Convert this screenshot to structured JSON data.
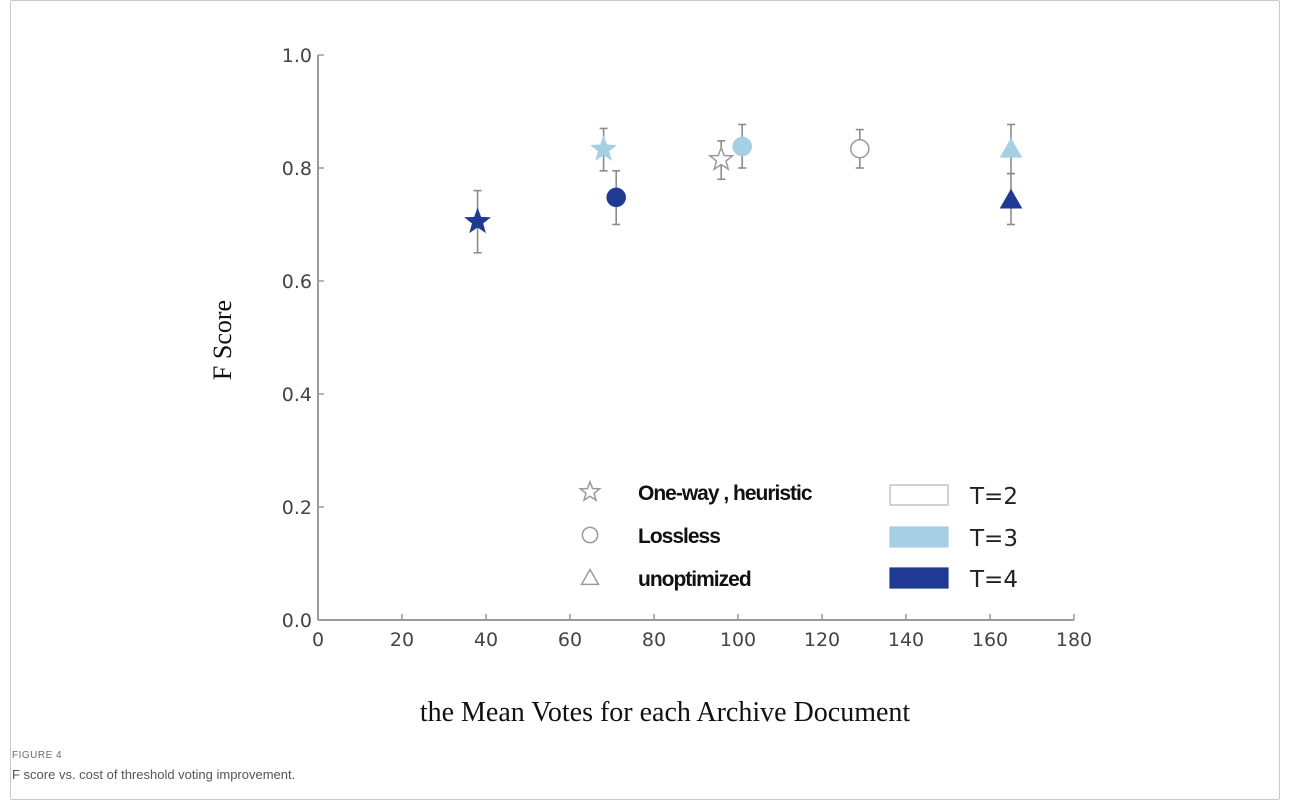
{
  "figure": {
    "label": "FIGURE 4",
    "caption": "F score vs. cost of threshold voting improvement."
  },
  "chart_data": {
    "type": "scatter",
    "title": "",
    "xlabel": "the Mean Votes for each Archive Document",
    "ylabel": "F Score",
    "xlim": [
      0,
      180
    ],
    "ylim": [
      0.0,
      1.0
    ],
    "xticks": [
      0,
      20,
      40,
      60,
      80,
      100,
      120,
      140,
      160,
      180
    ],
    "yticks": [
      0.0,
      0.2,
      0.4,
      0.6,
      0.8,
      1.0
    ],
    "x_tick_labels": [
      "0",
      "20",
      "40",
      "60",
      "80",
      "100",
      "120",
      "140",
      "160",
      "180"
    ],
    "y_tick_labels": [
      "0.0",
      "0.2",
      "0.4",
      "0.6",
      "0.8",
      "1.0"
    ],
    "grid": false,
    "legend_position": "bottom-right",
    "marker_legend": [
      {
        "marker": "star",
        "label": "One-way , heuristic"
      },
      {
        "marker": "circle",
        "label": "Lossless"
      },
      {
        "marker": "triangle",
        "label": "unoptimized"
      }
    ],
    "color_legend": [
      {
        "label": "T=2",
        "color": "#ffffff"
      },
      {
        "label": "T=3",
        "color": "#a6cfe4"
      },
      {
        "label": "T=4",
        "color": "#1f3a93"
      }
    ],
    "points": [
      {
        "method": "One-way , heuristic",
        "marker": "star",
        "T": "T=4",
        "x": 38,
        "y": 0.705,
        "err_low": 0.65,
        "err_high": 0.76
      },
      {
        "method": "One-way , heuristic",
        "marker": "star",
        "T": "T=3",
        "x": 68,
        "y": 0.833,
        "err_low": 0.795,
        "err_high": 0.87
      },
      {
        "method": "One-way , heuristic",
        "marker": "star",
        "T": "T=2",
        "x": 96,
        "y": 0.815,
        "err_low": 0.78,
        "err_high": 0.848
      },
      {
        "method": "Lossless",
        "marker": "circle",
        "T": "T=4",
        "x": 71,
        "y": 0.748,
        "err_low": 0.7,
        "err_high": 0.795
      },
      {
        "method": "Lossless",
        "marker": "circle",
        "T": "T=3",
        "x": 101,
        "y": 0.838,
        "err_low": 0.8,
        "err_high": 0.877
      },
      {
        "method": "Lossless",
        "marker": "circle",
        "T": "T=2",
        "x": 129,
        "y": 0.834,
        "err_low": 0.8,
        "err_high": 0.868
      },
      {
        "method": "unoptimized",
        "marker": "triangle",
        "T": "T=4",
        "x": 165,
        "y": 0.743,
        "err_low": 0.7,
        "err_high": 0.79
      },
      {
        "method": "unoptimized",
        "marker": "triangle",
        "T": "T=3",
        "x": 165,
        "y": 0.833,
        "err_low": 0.79,
        "err_high": 0.877
      }
    ],
    "styles": {
      "axis_color": "#9a9a9a",
      "tick_label_color": "#444444",
      "errorbar_color": "#8c8c8c",
      "outline_color": "#9a9a9a"
    }
  }
}
